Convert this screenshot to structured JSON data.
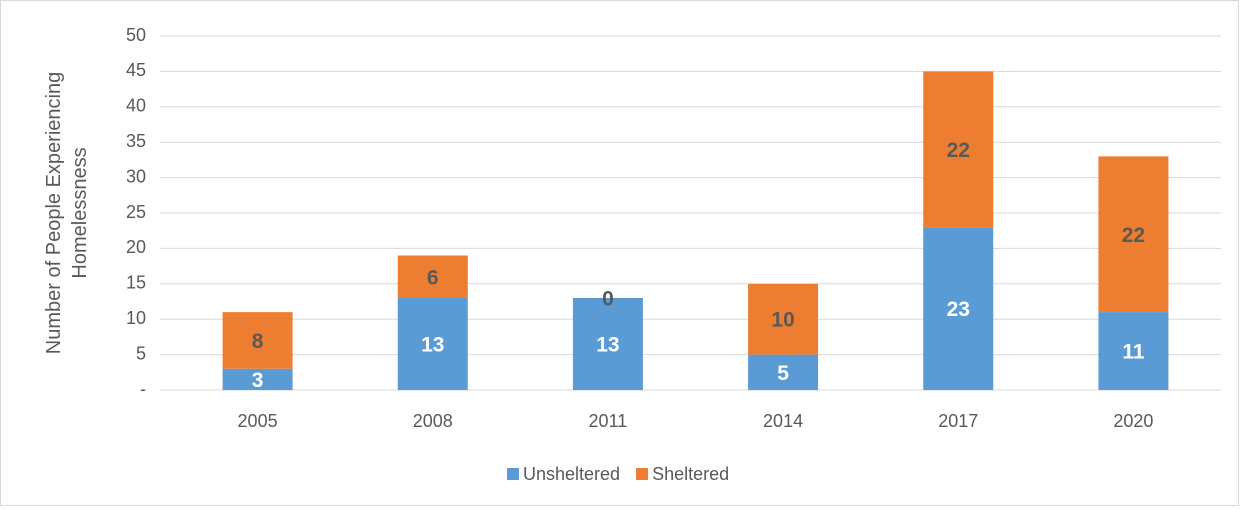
{
  "chart_data": {
    "type": "stacked_bar",
    "y_label_lines": [
      "Number of People Experiencing",
      "Homelessness"
    ],
    "categories": [
      "2005",
      "2008",
      "2011",
      "2014",
      "2017",
      "2020"
    ],
    "series": [
      {
        "name": "Unsheltered",
        "color": "#5b9bd5",
        "label_color": "#ffffff",
        "values": [
          3,
          13,
          13,
          5,
          23,
          11
        ]
      },
      {
        "name": "Sheltered",
        "color": "#ed7d31",
        "label_color": "#595959",
        "values": [
          8,
          6,
          0,
          10,
          22,
          22
        ]
      }
    ],
    "ylim": [
      0,
      50
    ],
    "yticks": [
      {
        "value": 0,
        "label": "-"
      },
      5,
      10,
      15,
      20,
      25,
      30,
      35,
      40,
      45,
      50
    ],
    "grid": true,
    "legend": "bottom"
  }
}
